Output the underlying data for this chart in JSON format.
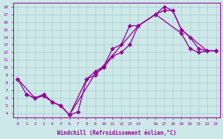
{
  "xlabel": "Windchill (Refroidissement éolien,°C)",
  "ylabel": "",
  "background_color": "#cce8e8",
  "line_color": "#990099",
  "grid_color": "#aacccc",
  "xlim": [
    -0.5,
    23.5
  ],
  "ylim": [
    3.5,
    18.5
  ],
  "xticks": [
    0,
    1,
    2,
    3,
    4,
    5,
    6,
    7,
    8,
    9,
    10,
    11,
    12,
    13,
    14,
    15,
    16,
    17,
    18,
    19,
    20,
    21,
    22,
    23
  ],
  "xtick_labels": [
    "0",
    "1",
    "2",
    "3",
    "4",
    "5",
    "6",
    "7",
    "8",
    "9",
    "10",
    "11",
    "12",
    "13",
    "14",
    "",
    "16",
    "17",
    "18",
    "19",
    "20",
    "21",
    "22",
    "23"
  ],
  "yticks": [
    4,
    5,
    6,
    7,
    8,
    9,
    10,
    11,
    12,
    13,
    14,
    15,
    16,
    17,
    18
  ],
  "curve1_x": [
    0,
    1,
    2,
    3,
    4,
    5,
    6,
    7,
    8,
    9,
    10,
    11,
    12,
    13,
    14,
    16,
    17,
    18,
    19,
    20,
    21,
    22,
    23
  ],
  "curve1_y": [
    8.5,
    6.5,
    6.0,
    6.5,
    5.5,
    5.0,
    3.8,
    4.2,
    8.5,
    9.5,
    10.2,
    12.5,
    13.0,
    15.5,
    15.5,
    17.0,
    18.0,
    17.5,
    15.0,
    14.0,
    12.5,
    12.2,
    12.2
  ],
  "curve2_x": [
    1,
    2,
    3,
    4,
    5,
    6,
    9,
    10,
    11,
    12,
    13,
    14,
    16,
    17,
    18,
    19,
    22,
    23
  ],
  "curve2_y": [
    6.5,
    6.0,
    6.5,
    5.5,
    5.0,
    3.8,
    9.2,
    10.0,
    11.5,
    12.0,
    13.0,
    15.5,
    17.0,
    17.5,
    17.5,
    15.0,
    12.2,
    12.2
  ],
  "curve3_x": [
    0,
    2,
    3,
    4,
    5,
    6,
    8,
    9,
    14,
    16,
    19,
    20,
    21,
    22,
    23
  ],
  "curve3_y": [
    8.5,
    6.0,
    6.3,
    5.5,
    5.0,
    3.8,
    8.5,
    9.0,
    15.5,
    17.0,
    14.5,
    12.5,
    12.0,
    12.2,
    12.2
  ],
  "marker_size": 3,
  "line_width": 1.0
}
